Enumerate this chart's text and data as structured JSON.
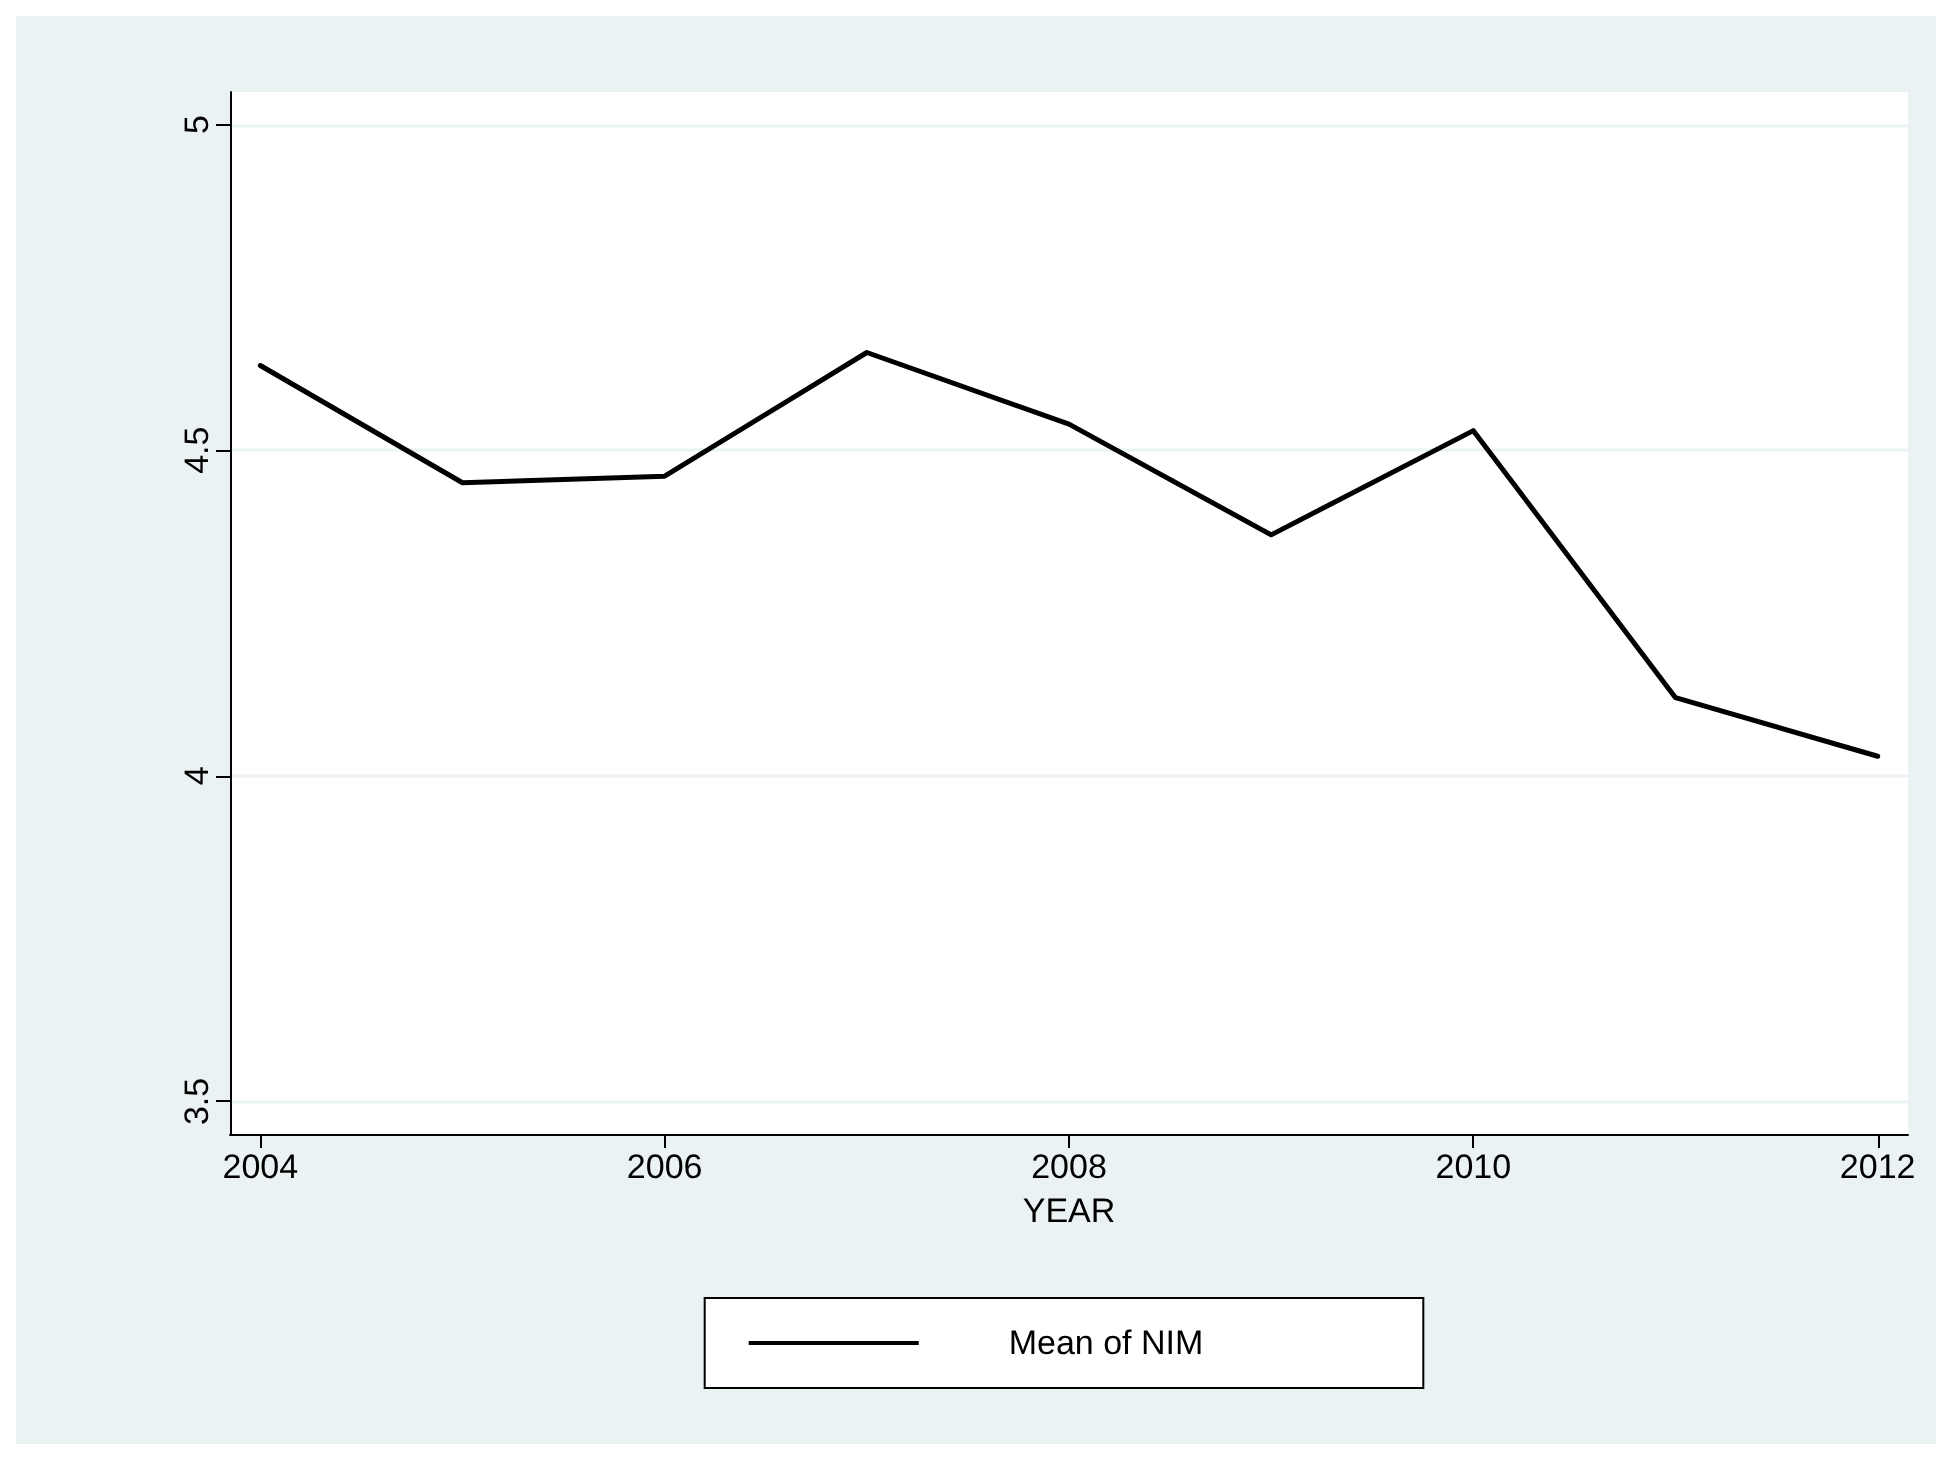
{
  "chart_data": {
    "type": "line",
    "xlabel": "YEAR",
    "x": [
      2004,
      2005,
      2006,
      2007,
      2008,
      2009,
      2010,
      2011,
      2012
    ],
    "series": [
      {
        "name": "Mean of NIM",
        "color": "#000000",
        "values": [
          4.63,
          4.45,
          4.46,
          4.65,
          4.54,
          4.37,
          4.53,
          4.12,
          4.03
        ]
      }
    ],
    "xlim": [
      2003.85,
      2012.15
    ],
    "xticks": [
      2004,
      2006,
      2008,
      2010,
      2012
    ],
    "ylim": [
      3.45,
      5.05
    ],
    "yticks": [
      3.5,
      4,
      4.5,
      5
    ],
    "grid": "y",
    "legend": "bottom",
    "marker": "none",
    "line_style": "solid"
  }
}
